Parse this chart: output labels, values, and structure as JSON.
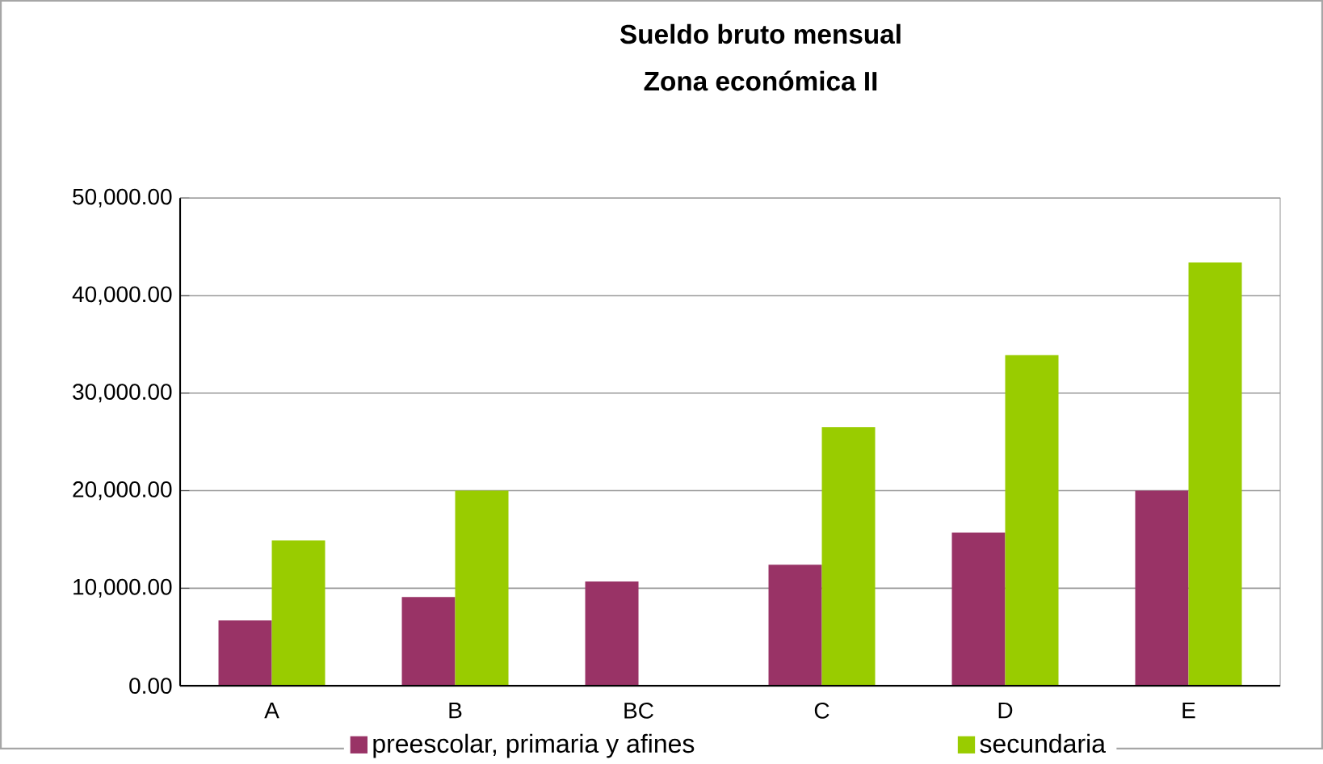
{
  "chart_data": {
    "type": "bar",
    "title": "Sueldo bruto mensual",
    "subtitle": "Zona económica II",
    "categories": [
      "A",
      "B",
      "BC",
      "C",
      "D",
      "E"
    ],
    "series": [
      {
        "name": "preescolar, primaria y afines",
        "color": "#993366",
        "values": [
          6700,
          9100,
          10700,
          12400,
          15700,
          20000
        ]
      },
      {
        "name": "secundaria",
        "color": "#99cc00",
        "values": [
          14900,
          20000,
          null,
          26500,
          33900,
          43400
        ]
      }
    ],
    "ylim": [
      0,
      50000
    ],
    "yticks": [
      {
        "value": 0,
        "label": "0.00"
      },
      {
        "value": 10000,
        "label": "10,000.00"
      },
      {
        "value": 20000,
        "label": "20,000.00"
      },
      {
        "value": 30000,
        "label": "30,000.00"
      },
      {
        "value": 40000,
        "label": "40,000.00"
      },
      {
        "value": 50000,
        "label": "50,000.00"
      }
    ],
    "grid": "y",
    "legend": "bottom"
  }
}
